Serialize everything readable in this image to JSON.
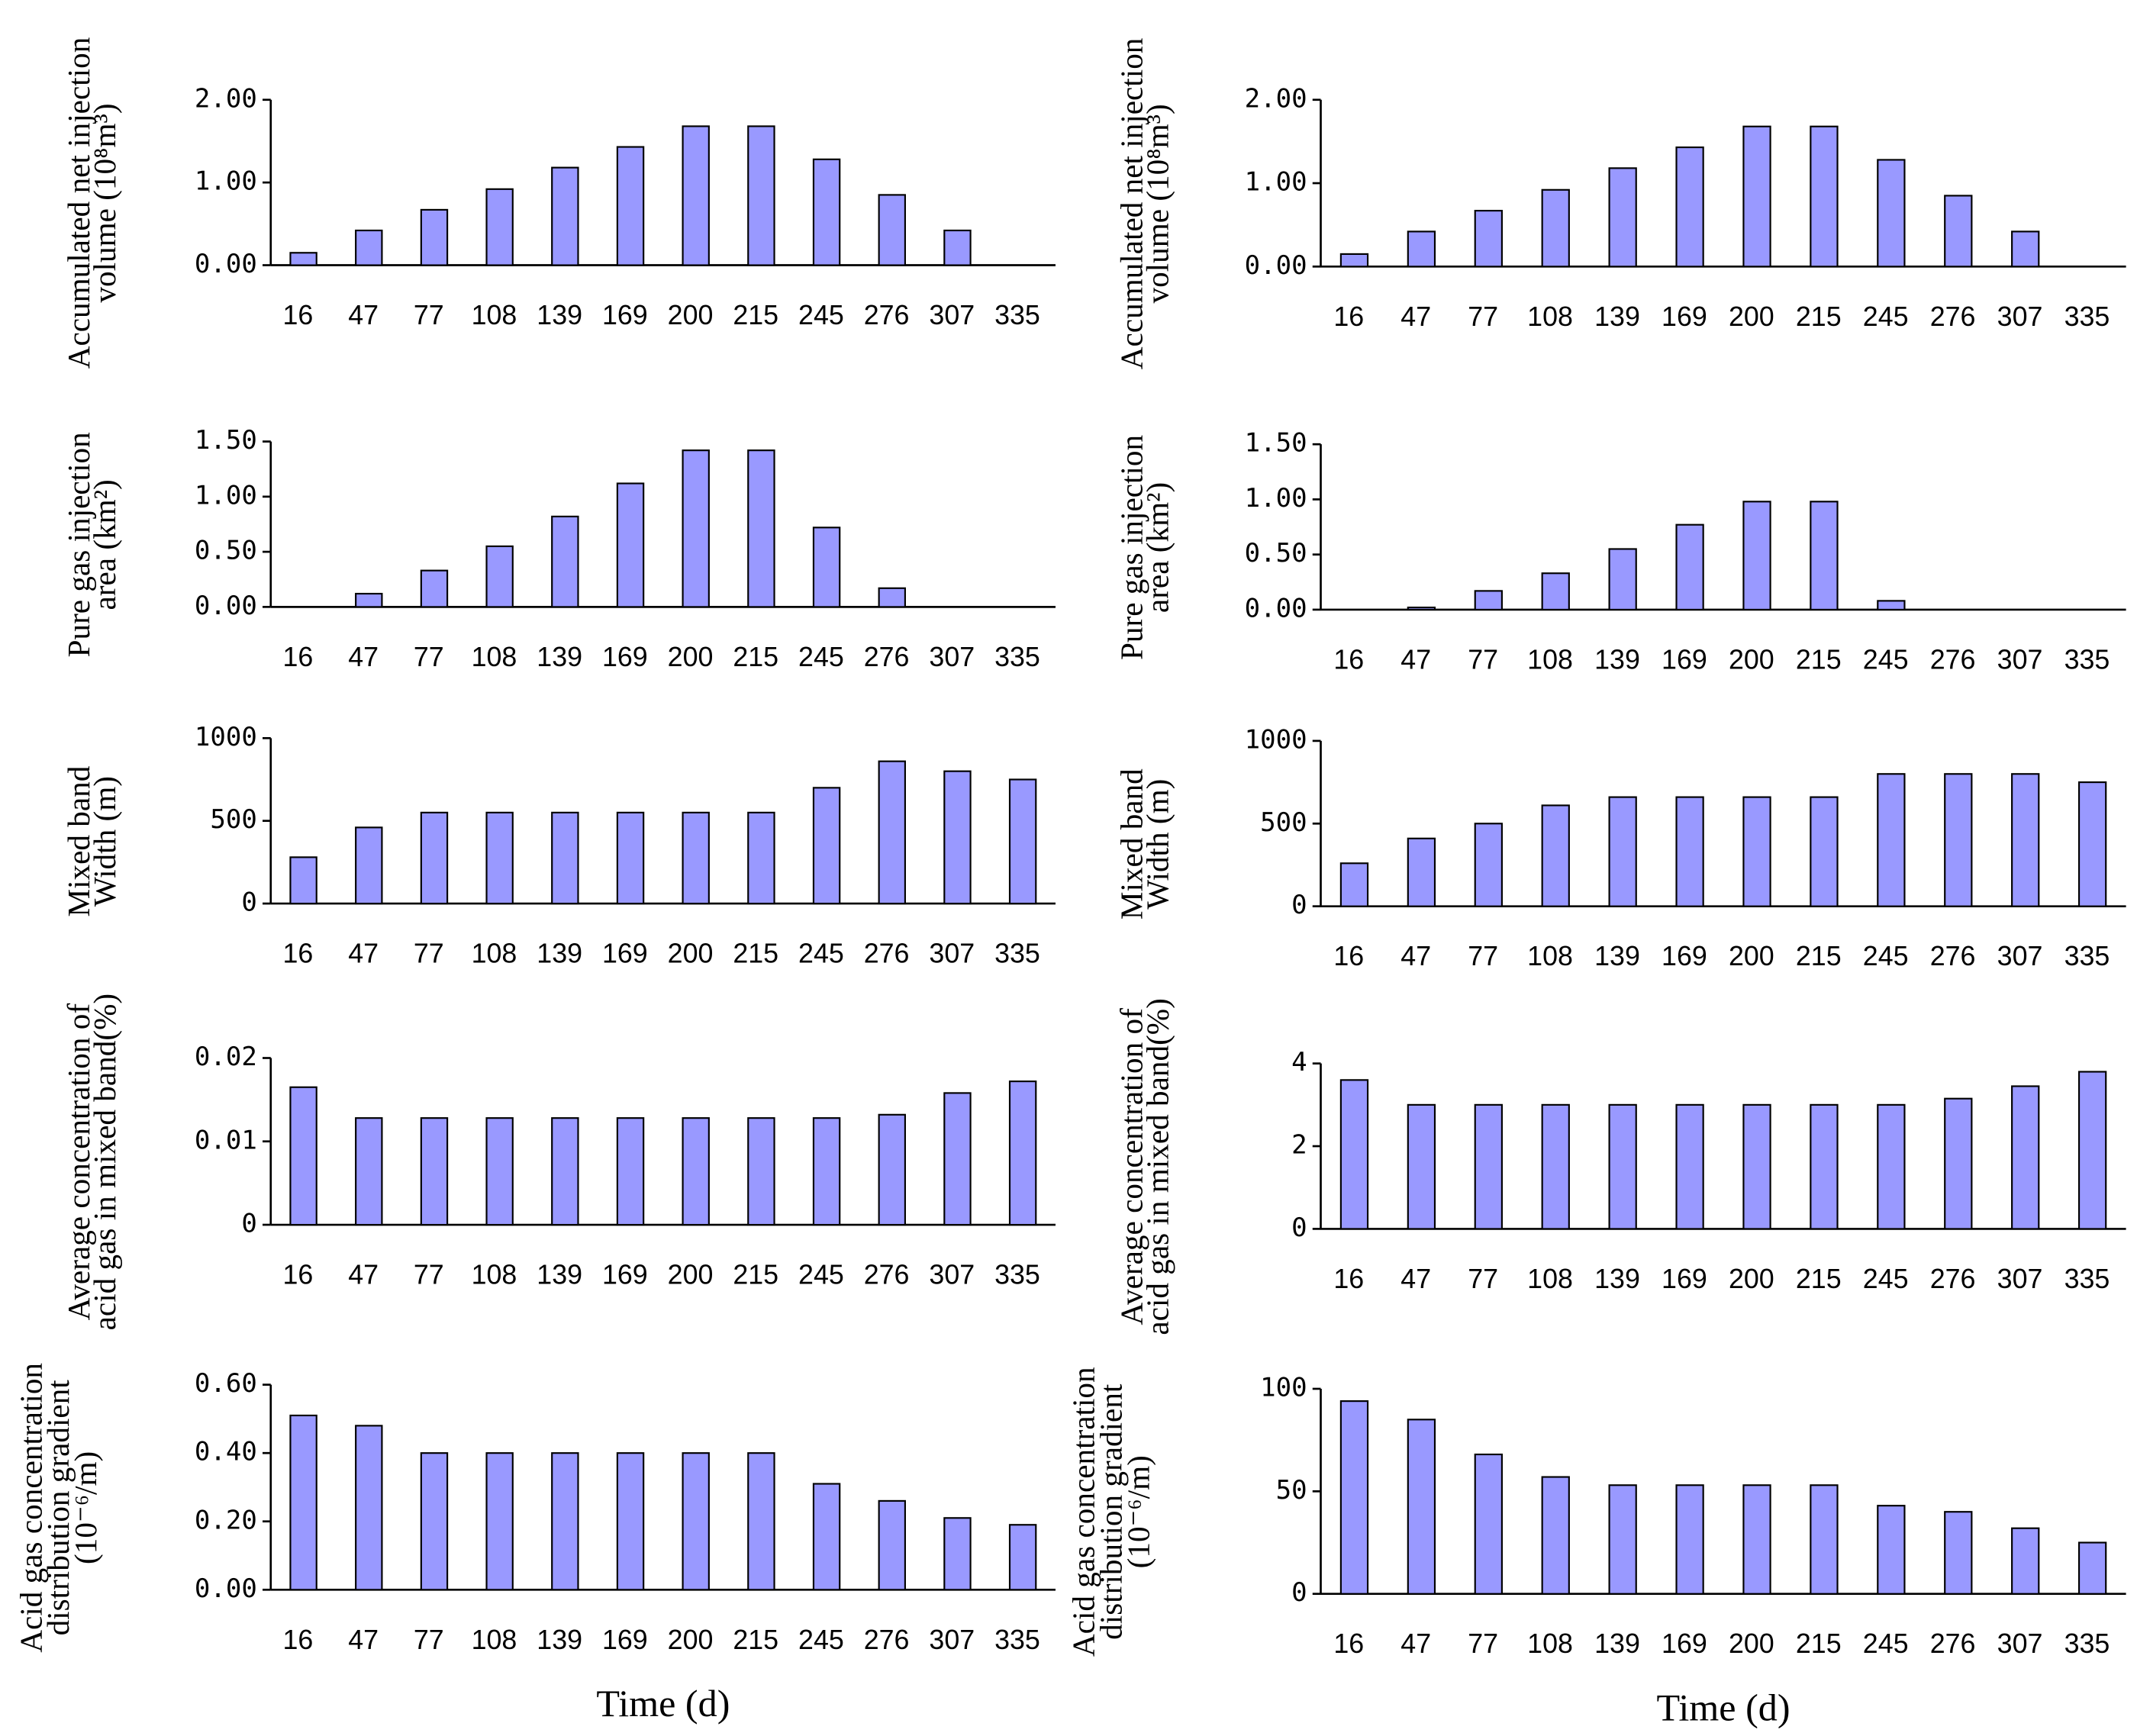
{
  "chart_data": [
    {
      "type": "bar",
      "ylabel": [
        "Accumulated net injection",
        "volume (10⁸m³)"
      ],
      "categories": [
        "16",
        "47",
        "77",
        "108",
        "139",
        "169",
        "200",
        "215",
        "245",
        "276",
        "307",
        "335"
      ],
      "values": [
        0.15,
        0.42,
        0.67,
        0.92,
        1.18,
        1.43,
        1.68,
        1.68,
        1.28,
        0.85,
        0.42,
        0
      ],
      "color": "#9999ff",
      "ylim": [
        0,
        2
      ],
      "yticks": [
        {
          "value": 0,
          "label": "0.00"
        },
        {
          "value": 1,
          "label": "1.00"
        },
        {
          "value": 2,
          "label": "2.00"
        }
      ]
    },
    {
      "type": "bar",
      "ylabel": [
        "Accumulated net injection",
        "volume (10⁸m³)"
      ],
      "categories": [
        "16",
        "47",
        "77",
        "108",
        "139",
        "169",
        "200",
        "215",
        "245",
        "276",
        "307",
        "335"
      ],
      "values": [
        0.15,
        0.42,
        0.67,
        0.92,
        1.18,
        1.43,
        1.68,
        1.68,
        1.28,
        0.85,
        0.42,
        0
      ],
      "color": "#9999ff",
      "ylim": [
        0,
        2
      ],
      "yticks": [
        {
          "value": 0,
          "label": "0.00"
        },
        {
          "value": 1,
          "label": "1.00"
        },
        {
          "value": 2,
          "label": "2.00"
        }
      ]
    },
    {
      "type": "bar",
      "ylabel": [
        "Pure gas injection",
        "area (km²)"
      ],
      "categories": [
        "16",
        "47",
        "77",
        "108",
        "139",
        "169",
        "200",
        "215",
        "245",
        "276",
        "307",
        "335"
      ],
      "values": [
        0,
        0.12,
        0.33,
        0.55,
        0.82,
        1.12,
        1.42,
        1.42,
        0.72,
        0.17,
        0,
        0
      ],
      "color": "#9999ff",
      "ylim": [
        0,
        1.5
      ],
      "yticks": [
        {
          "value": 0,
          "label": "0.00"
        },
        {
          "value": 0.5,
          "label": "0.50"
        },
        {
          "value": 1,
          "label": "1.00"
        },
        {
          "value": 1.5,
          "label": "1.50"
        }
      ]
    },
    {
      "type": "bar",
      "ylabel": [
        "Pure gas injection",
        "area (km²)"
      ],
      "categories": [
        "16",
        "47",
        "77",
        "108",
        "139",
        "169",
        "200",
        "215",
        "245",
        "276",
        "307",
        "335"
      ],
      "values": [
        0,
        0.02,
        0.17,
        0.33,
        0.55,
        0.77,
        0.98,
        0.98,
        0.08,
        0,
        0,
        0
      ],
      "color": "#9999ff",
      "ylim": [
        0,
        1.5
      ],
      "yticks": [
        {
          "value": 0,
          "label": "0.00"
        },
        {
          "value": 0.5,
          "label": "0.50"
        },
        {
          "value": 1,
          "label": "1.00"
        },
        {
          "value": 1.5,
          "label": "1.50"
        }
      ]
    },
    {
      "type": "bar",
      "ylabel": [
        "Mixed band",
        "Width (m)"
      ],
      "categories": [
        "16",
        "47",
        "77",
        "108",
        "139",
        "169",
        "200",
        "215",
        "245",
        "276",
        "307",
        "335"
      ],
      "values": [
        280,
        460,
        550,
        550,
        550,
        550,
        550,
        550,
        700,
        860,
        800,
        750
      ],
      "color": "#9999ff",
      "ylim": [
        0,
        1000
      ],
      "yticks": [
        0,
        500,
        1000
      ]
    },
    {
      "type": "bar",
      "ylabel": [
        "Mixed band",
        "Width (m)"
      ],
      "categories": [
        "16",
        "47",
        "77",
        "108",
        "139",
        "169",
        "200",
        "215",
        "245",
        "276",
        "307",
        "335"
      ],
      "values": [
        260,
        410,
        500,
        610,
        660,
        660,
        660,
        660,
        800,
        800,
        800,
        750
      ],
      "color": "#9999ff",
      "ylim": [
        0,
        1000
      ],
      "yticks": [
        0,
        500,
        1000
      ]
    },
    {
      "type": "bar",
      "ylabel": [
        "Average concentration of",
        "acid gas in mixed band(%)"
      ],
      "categories": [
        "16",
        "47",
        "77",
        "108",
        "139",
        "169",
        "200",
        "215",
        "245",
        "276",
        "307",
        "335"
      ],
      "values": [
        0.0165,
        0.0128,
        0.0128,
        0.0128,
        0.0128,
        0.0128,
        0.0128,
        0.0128,
        0.0128,
        0.0132,
        0.0158,
        0.0172
      ],
      "color": "#9999ff",
      "ylim": [
        0,
        0.02
      ],
      "yticks": [
        0,
        0.01,
        0.02
      ]
    },
    {
      "type": "bar",
      "ylabel": [
        "Average concentration of",
        "acid gas in mixed band(%)"
      ],
      "categories": [
        "16",
        "47",
        "77",
        "108",
        "139",
        "169",
        "200",
        "215",
        "245",
        "276",
        "307",
        "335"
      ],
      "values": [
        3.6,
        3.0,
        3.0,
        3.0,
        3.0,
        3.0,
        3.0,
        3.0,
        3.0,
        3.15,
        3.45,
        3.8
      ],
      "color": "#9999ff",
      "ylim": [
        0,
        4
      ],
      "yticks": [
        0,
        2,
        4
      ]
    },
    {
      "type": "bar",
      "ylabel": [
        "Acid gas concentration",
        "distribution gradient",
        "(10⁻⁶/m)"
      ],
      "xlabel": "Time (d)",
      "categories": [
        "16",
        "47",
        "77",
        "108",
        "139",
        "169",
        "200",
        "215",
        "245",
        "276",
        "307",
        "335"
      ],
      "values": [
        0.51,
        0.48,
        0.4,
        0.4,
        0.4,
        0.4,
        0.4,
        0.4,
        0.31,
        0.26,
        0.21,
        0.19
      ],
      "color": "#9999ff",
      "ylim": [
        0,
        0.6
      ],
      "yticks": [
        {
          "value": 0,
          "label": "0.00"
        },
        {
          "value": 0.2,
          "label": "0.20"
        },
        {
          "value": 0.4,
          "label": "0.40"
        },
        {
          "value": 0.6,
          "label": "0.60"
        }
      ]
    },
    {
      "type": "bar",
      "ylabel": [
        "Acid gas concentration",
        "distribution gradient",
        "(10⁻⁶/m)"
      ],
      "xlabel": "Time (d)",
      "categories": [
        "16",
        "47",
        "77",
        "108",
        "139",
        "169",
        "200",
        "215",
        "245",
        "276",
        "307",
        "335"
      ],
      "values": [
        94,
        85,
        68,
        57,
        53,
        53,
        53,
        53,
        43,
        40,
        32,
        25
      ],
      "color": "#9999ff",
      "ylim": [
        0,
        100
      ],
      "yticks": [
        0,
        50,
        100
      ]
    }
  ]
}
